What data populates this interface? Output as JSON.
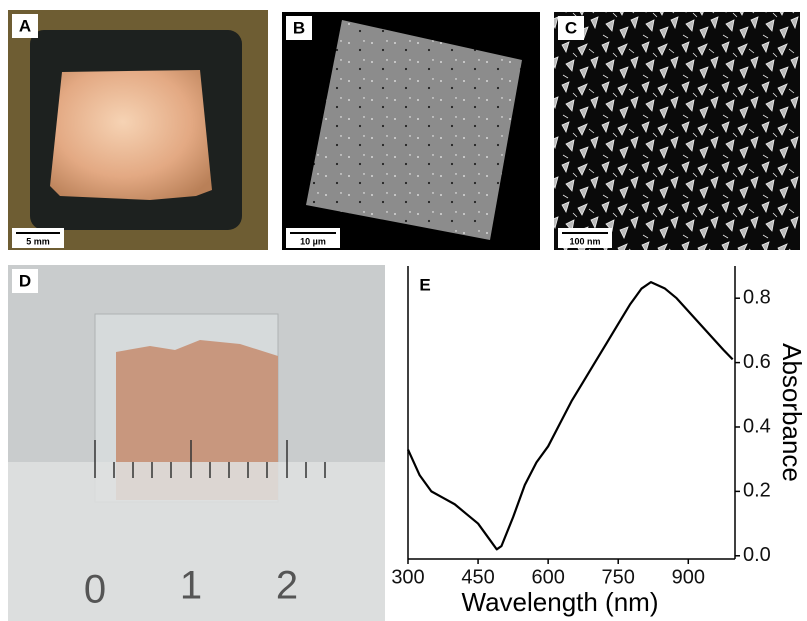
{
  "panels": [
    {
      "label": "A",
      "scale_bar": "5 mm"
    },
    {
      "label": "B",
      "scale_bar": "10 µm"
    },
    {
      "label": "C",
      "scale_bar": "100 nm"
    },
    {
      "label": "D",
      "ruler_labels": [
        "0",
        "1",
        "2"
      ]
    }
  ],
  "chart_data": {
    "type": "line",
    "panel_label": "E",
    "x_label": "Wavelength (nm)",
    "y_label": "Absorbance",
    "y_axis_side": "right",
    "x": [
      300,
      325,
      350,
      375,
      400,
      425,
      450,
      475,
      490,
      500,
      525,
      550,
      575,
      600,
      625,
      650,
      675,
      700,
      725,
      750,
      775,
      800,
      820,
      850,
      875,
      900,
      925,
      950,
      975,
      995
    ],
    "series": [
      {
        "color": "#000000",
        "values": [
          0.33,
          0.25,
          0.2,
          0.18,
          0.16,
          0.13,
          0.1,
          0.05,
          0.02,
          0.03,
          0.12,
          0.22,
          0.29,
          0.34,
          0.41,
          0.48,
          0.54,
          0.6,
          0.66,
          0.72,
          0.78,
          0.83,
          0.85,
          0.83,
          0.8,
          0.76,
          0.72,
          0.68,
          0.64,
          0.61
        ]
      }
    ],
    "xlim": [
      300,
      1000
    ],
    "ylim": [
      -0.01,
      0.9
    ],
    "xticks": [
      300,
      450,
      600,
      750,
      900
    ],
    "yticks": [
      {
        "value": 0,
        "label": "0.0"
      },
      0.2,
      0.4,
      0.6,
      0.8
    ]
  }
}
